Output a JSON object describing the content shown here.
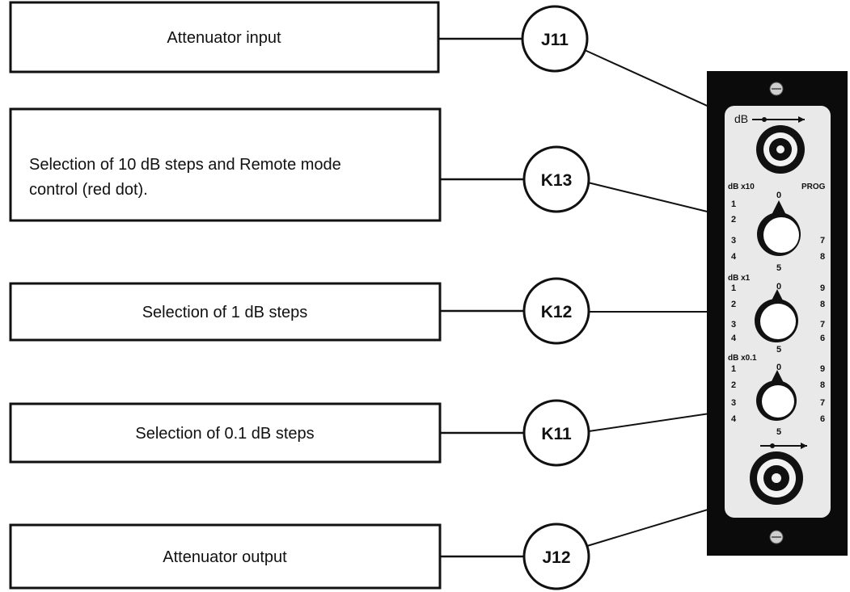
{
  "callouts": [
    {
      "label_lines": [
        "Attenuator input"
      ],
      "ref": "J11"
    },
    {
      "label_lines": [
        "Selection of 10 dB steps and Remote mode",
        "control (red dot)."
      ],
      "ref": "K13"
    },
    {
      "label_lines": [
        "Selection of 1 dB steps"
      ],
      "ref": "K12"
    },
    {
      "label_lines": [
        "Selection of 0.1 dB steps"
      ],
      "ref": "K11"
    },
    {
      "label_lines": [
        "Attenuator output"
      ],
      "ref": "J12"
    }
  ],
  "panel": {
    "db_label": "dB",
    "x10": {
      "title": "dB x10",
      "prog": "PROG",
      "top": "0",
      "bottom": "5",
      "left": [
        "1",
        "2",
        "3",
        "4"
      ],
      "right": [
        "7",
        "8"
      ]
    },
    "x1": {
      "title": "dB x1",
      "top": "0",
      "bottom": "5",
      "left": [
        "1",
        "2",
        "3",
        "4"
      ],
      "right": [
        "9",
        "8",
        "7",
        "6"
      ]
    },
    "x01": {
      "title": "dB x0.1",
      "top": "0",
      "bottom": "5",
      "left": [
        "1",
        "2",
        "3",
        "4"
      ],
      "right": [
        "9",
        "8",
        "7",
        "6"
      ]
    }
  },
  "colors": {
    "panel_frame": "#0b0b0b",
    "panel_face": "#e9e9e9",
    "ink": "#111111"
  }
}
